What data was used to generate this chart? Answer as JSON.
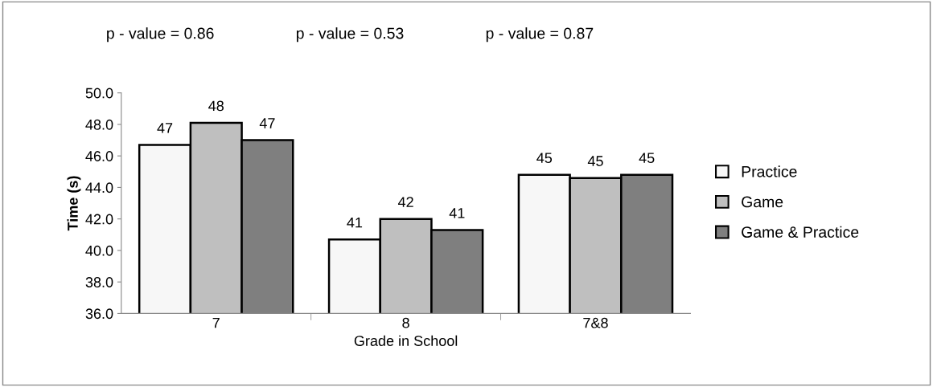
{
  "chart_data": {
    "type": "bar",
    "xlabel": "Grade in School",
    "ylabel": "Time (s)",
    "categories": [
      "7",
      "8",
      "7&8"
    ],
    "series": [
      {
        "name": "Practice",
        "color": "#f7f7f7",
        "values": [
          46.7,
          40.7,
          44.8
        ],
        "value_labels": [
          "47",
          "41",
          "45"
        ]
      },
      {
        "name": "Game",
        "color": "#bfbfbf",
        "values": [
          48.1,
          42.0,
          44.6
        ],
        "value_labels": [
          "48",
          "42",
          "45"
        ]
      },
      {
        "name": "Game & Practice",
        "color": "#7f7f7f",
        "values": [
          47.0,
          41.3,
          44.8
        ],
        "value_labels": [
          "47",
          "41",
          "45"
        ]
      }
    ],
    "annotations": [
      "p - value = 0.86",
      "p - value = 0.53",
      "p - value = 0.87"
    ],
    "ylim": [
      36,
      50
    ],
    "yticks": [
      {
        "value": 36,
        "label": "36.0"
      },
      {
        "value": 38,
        "label": "38.0"
      },
      {
        "value": 40,
        "label": "40.0"
      },
      {
        "value": 42,
        "label": "42.0"
      },
      {
        "value": 44,
        "label": "44.0"
      },
      {
        "value": 46,
        "label": "46.0"
      },
      {
        "value": 48,
        "label": "48.0"
      },
      {
        "value": 50,
        "label": "50.0"
      }
    ],
    "grid": false,
    "legend": "right"
  }
}
